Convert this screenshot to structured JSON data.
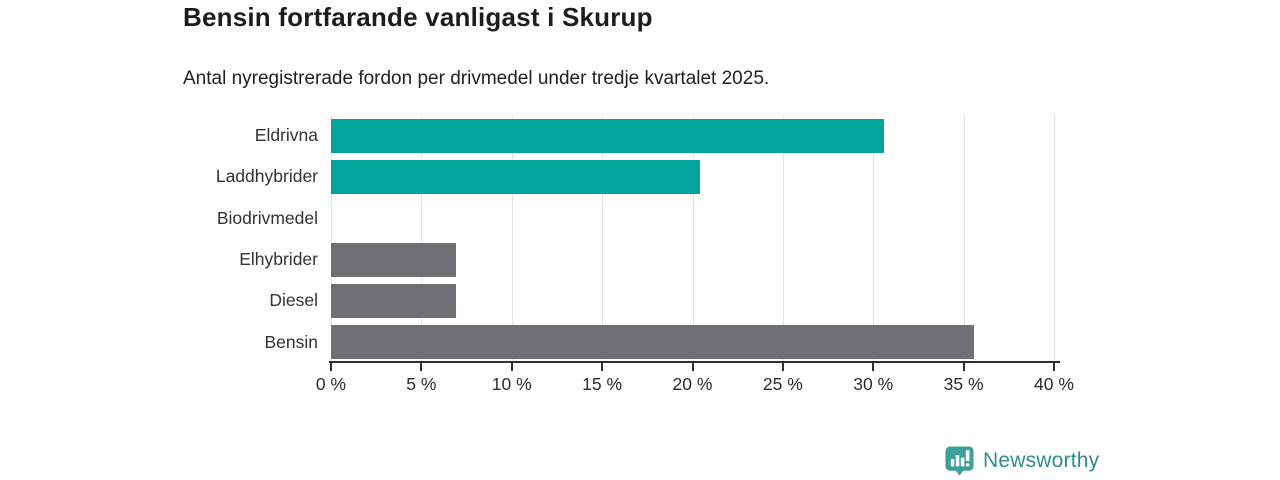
{
  "chart_data": {
    "type": "bar",
    "orientation": "horizontal",
    "title": "Bensin fortfarande vanligast i Skurup",
    "subtitle": "Antal nyregistrerade fordon per drivmedel under tredje kvartalet 2025.",
    "categories": [
      "Eldrivna",
      "Laddhybrider",
      "Biodrivmedel",
      "Elhybrider",
      "Diesel",
      "Bensin"
    ],
    "values": [
      30.6,
      20.4,
      0,
      6.9,
      6.9,
      35.6
    ],
    "unit": "%",
    "bar_colors": [
      "#00a49b",
      "#00a49b",
      "#6e6e73",
      "#6e6e73",
      "#6e6e73",
      "#6e6e73"
    ],
    "highlight_color": "#00a49b",
    "default_color": "#6e6e73",
    "xlim": [
      0,
      40
    ],
    "xticks": [
      0,
      5,
      10,
      15,
      20,
      25,
      30,
      35,
      40
    ],
    "xtick_labels": [
      "0 %",
      "5 %",
      "10 %",
      "15 %",
      "20 %",
      "25 %",
      "30 %",
      "35 %",
      "40 %"
    ],
    "grid": true,
    "legend": "none",
    "gridline_color": "#e3e3e3",
    "axis_color": "#2f2f2f"
  },
  "footer": {
    "brand": "Newsworthy",
    "brand_color": "#2f8e89",
    "logo_icon": "newsworthy-speech-bubble-barchart-icon"
  }
}
